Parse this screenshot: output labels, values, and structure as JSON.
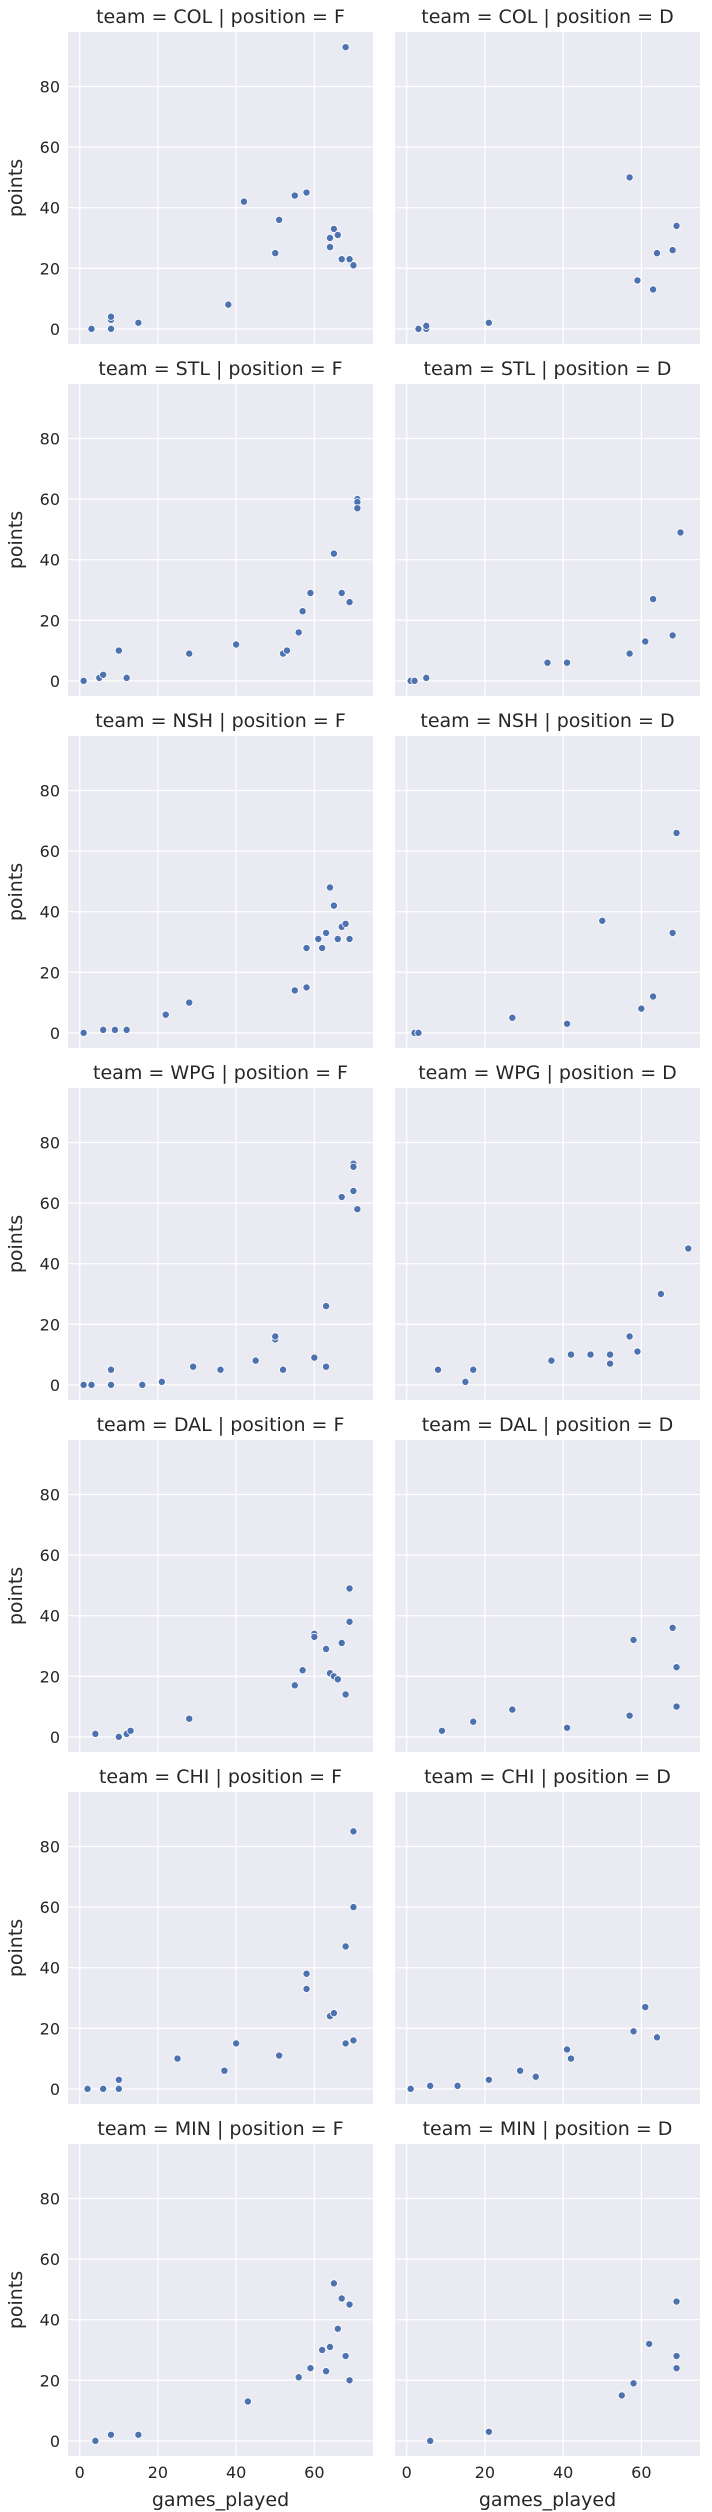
{
  "chart_data": {
    "type": "scatter",
    "xlabel": "games_played",
    "ylabel": "points",
    "xlim": [
      -3,
      75
    ],
    "ylim": [
      -5,
      98
    ],
    "xticks": [
      0,
      20,
      40,
      60
    ],
    "yticks": [
      0,
      20,
      40,
      60,
      80
    ],
    "grid": true,
    "point_color": "#4c72b0",
    "panel_color": "#eaeaf2",
    "columns": [
      "F",
      "D"
    ],
    "rows": [
      "COL",
      "STL",
      "NSH",
      "WPG",
      "DAL",
      "CHI",
      "MIN"
    ],
    "panels": [
      {
        "team": "COL",
        "position": "F",
        "title": "team = COL | position = F",
        "x": [
          3,
          8,
          8,
          8,
          15,
          38,
          42,
          50,
          51,
          55,
          58,
          64,
          64,
          65,
          66,
          67,
          68,
          69,
          70
        ],
        "y": [
          0,
          0,
          3,
          4,
          2,
          8,
          42,
          25,
          36,
          44,
          45,
          27,
          30,
          33,
          31,
          23,
          93,
          23,
          21
        ]
      },
      {
        "team": "COL",
        "position": "D",
        "title": "team = COL | position = D",
        "x": [
          3,
          5,
          5,
          21,
          57,
          59,
          63,
          64,
          68,
          69
        ],
        "y": [
          0,
          0,
          1,
          2,
          50,
          16,
          13,
          25,
          26,
          34
        ]
      },
      {
        "team": "STL",
        "position": "F",
        "title": "team = STL | position = F",
        "x": [
          1,
          5,
          6,
          10,
          12,
          28,
          40,
          52,
          53,
          56,
          57,
          59,
          65,
          67,
          69,
          71,
          71,
          71
        ],
        "y": [
          0,
          1,
          2,
          10,
          1,
          9,
          12,
          9,
          10,
          16,
          23,
          29,
          42,
          29,
          26,
          60,
          59,
          57
        ]
      },
      {
        "team": "STL",
        "position": "D",
        "title": "team = STL | position = D",
        "x": [
          1,
          2,
          5,
          36,
          41,
          57,
          61,
          63,
          68,
          70
        ],
        "y": [
          0,
          0,
          1,
          6,
          6,
          9,
          13,
          27,
          15,
          49
        ]
      },
      {
        "team": "NSH",
        "position": "F",
        "title": "team = NSH | position = F",
        "x": [
          1,
          6,
          9,
          12,
          22,
          28,
          55,
          58,
          58,
          61,
          62,
          63,
          64,
          65,
          66,
          67,
          68,
          69
        ],
        "y": [
          0,
          1,
          1,
          1,
          6,
          10,
          14,
          15,
          28,
          31,
          28,
          33,
          48,
          42,
          31,
          35,
          36,
          31
        ]
      },
      {
        "team": "NSH",
        "position": "D",
        "title": "team = NSH | position = D",
        "x": [
          2,
          3,
          27,
          41,
          50,
          60,
          63,
          68,
          69
        ],
        "y": [
          0,
          0,
          5,
          3,
          37,
          8,
          12,
          33,
          66
        ]
      },
      {
        "team": "WPG",
        "position": "F",
        "title": "team = WPG | position = F",
        "x": [
          1,
          3,
          8,
          8,
          16,
          21,
          29,
          36,
          45,
          50,
          50,
          52,
          60,
          63,
          63,
          67,
          70,
          70,
          70,
          71
        ],
        "y": [
          0,
          0,
          5,
          0,
          0,
          1,
          6,
          5,
          8,
          15,
          16,
          5,
          9,
          6,
          26,
          62,
          64,
          73,
          72,
          58
        ]
      },
      {
        "team": "WPG",
        "position": "D",
        "title": "team = WPG | position = D",
        "x": [
          8,
          15,
          17,
          37,
          42,
          47,
          52,
          52,
          57,
          59,
          65,
          72
        ],
        "y": [
          5,
          1,
          5,
          8,
          10,
          10,
          7,
          10,
          16,
          11,
          30,
          45
        ]
      },
      {
        "team": "DAL",
        "position": "F",
        "title": "team = DAL | position = F",
        "x": [
          4,
          10,
          12,
          13,
          28,
          55,
          57,
          60,
          60,
          63,
          64,
          65,
          66,
          67,
          68,
          69,
          69
        ],
        "y": [
          1,
          0,
          1,
          2,
          6,
          17,
          22,
          34,
          33,
          29,
          21,
          20,
          19,
          31,
          14,
          38,
          49
        ]
      },
      {
        "team": "DAL",
        "position": "D",
        "title": "team = DAL | position = D",
        "x": [
          9,
          17,
          27,
          41,
          57,
          58,
          68,
          69,
          69
        ],
        "y": [
          2,
          5,
          9,
          3,
          7,
          32,
          36,
          23,
          10
        ]
      },
      {
        "team": "CHI",
        "position": "F",
        "title": "team = CHI | position = F",
        "x": [
          2,
          6,
          10,
          10,
          25,
          37,
          40,
          51,
          58,
          58,
          64,
          65,
          68,
          68,
          70,
          70,
          70
        ],
        "y": [
          0,
          0,
          0,
          3,
          10,
          6,
          15,
          11,
          38,
          33,
          24,
          25,
          47,
          15,
          16,
          60,
          85
        ]
      },
      {
        "team": "CHI",
        "position": "D",
        "title": "team = CHI | position = D",
        "x": [
          1,
          6,
          13,
          21,
          29,
          33,
          41,
          42,
          58,
          61,
          64
        ],
        "y": [
          0,
          1,
          1,
          3,
          6,
          4,
          13,
          10,
          19,
          27,
          17
        ]
      },
      {
        "team": "MIN",
        "position": "F",
        "title": "team = MIN | position = F",
        "x": [
          4,
          8,
          15,
          43,
          56,
          59,
          62,
          63,
          64,
          65,
          66,
          67,
          68,
          69,
          69
        ],
        "y": [
          0,
          2,
          2,
          13,
          21,
          24,
          30,
          23,
          31,
          52,
          37,
          47,
          28,
          45,
          20
        ]
      },
      {
        "team": "MIN",
        "position": "D",
        "title": "team = MIN | position = D",
        "x": [
          6,
          21,
          55,
          58,
          62,
          69,
          69,
          69
        ],
        "y": [
          0,
          3,
          15,
          19,
          32,
          24,
          28,
          46
        ]
      }
    ]
  }
}
